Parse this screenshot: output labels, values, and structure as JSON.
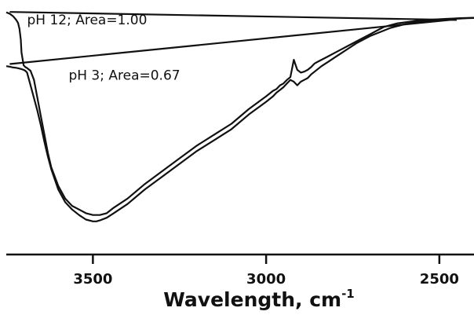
{
  "chart_data": {
    "type": "line",
    "title": "",
    "xlabel": "Wavelength, cm",
    "xlabel_superscript": "-1",
    "ylabel": "",
    "xlim": [
      3750,
      2400
    ],
    "ylim": [
      -1.05,
      0.06
    ],
    "x_reversed": true,
    "grid": false,
    "legend": "none",
    "xticks": [
      3500,
      3000,
      2500
    ],
    "xtick_labels": [
      "3500",
      "3000",
      "2500"
    ],
    "annotations": [
      {
        "text": "pH 12; Area=1.00",
        "x": 3690,
        "y": 0.005
      },
      {
        "text": "pH 3; Area=0.67",
        "x": 3570,
        "y": -0.3
      }
    ],
    "series": [
      {
        "color": "#111111",
        "x": [
          3750,
          3740,
          3730,
          3722,
          3716,
          3712,
          3708,
          3706,
          3700,
          3695,
          3690,
          3680,
          3670,
          3660,
          3650,
          3640,
          3630,
          3620,
          3600,
          3580,
          3560,
          3540,
          3520,
          3500,
          3490,
          3480,
          3460,
          3440,
          3400,
          3350,
          3300,
          3250,
          3200,
          3150,
          3100,
          3050,
          3000,
          2980,
          2970,
          2960,
          2950,
          2940,
          2930,
          2920,
          2910,
          2900,
          2890,
          2880,
          2870,
          2860,
          2850,
          2840,
          2820,
          2800,
          2780,
          2760,
          2740,
          2720,
          2700,
          2680,
          2660,
          2640,
          2620,
          2600,
          2580,
          2560,
          2540,
          2520,
          2500,
          2480,
          2460,
          2440,
          2420,
          2400
        ],
        "y": [
          0.07,
          0.062,
          0.048,
          0.03,
          0.012,
          -0.02,
          -0.08,
          -0.15,
          -0.22,
          -0.23,
          -0.235,
          -0.25,
          -0.3,
          -0.4,
          -0.5,
          -0.6,
          -0.7,
          -0.78,
          -0.88,
          -0.95,
          -0.99,
          -1.01,
          -1.03,
          -1.04,
          -1.04,
          -1.04,
          -1.03,
          -1.0,
          -0.95,
          -0.87,
          -0.8,
          -0.73,
          -0.66,
          -0.6,
          -0.54,
          -0.46,
          -0.39,
          -0.36,
          -0.35,
          -0.33,
          -0.32,
          -0.3,
          -0.285,
          -0.19,
          -0.245,
          -0.26,
          -0.255,
          -0.245,
          -0.23,
          -0.21,
          -0.2,
          -0.19,
          -0.17,
          -0.15,
          -0.13,
          -0.11,
          -0.09,
          -0.07,
          -0.05,
          -0.03,
          -0.01,
          0.0,
          0.01,
          0.015,
          0.02,
          0.025,
          0.028,
          0.03,
          0.032,
          0.034,
          0.036,
          0.038,
          0.039,
          0.04
        ]
      },
      {
        "color": "#111111",
        "x": [
          3750,
          3740,
          3730,
          3722,
          3716,
          3712,
          3708,
          3706,
          3700,
          3695,
          3690,
          3680,
          3670,
          3660,
          3650,
          3640,
          3630,
          3620,
          3600,
          3580,
          3560,
          3540,
          3520,
          3500,
          3490,
          3480,
          3460,
          3440,
          3400,
          3350,
          3300,
          3250,
          3200,
          3150,
          3100,
          3050,
          3000,
          2980,
          2970,
          2960,
          2950,
          2940,
          2930,
          2920,
          2910,
          2900,
          2890,
          2880,
          2870,
          2860,
          2850,
          2840,
          2820,
          2800,
          2780,
          2760,
          2740,
          2720,
          2700,
          2680,
          2660,
          2640,
          2620,
          2600,
          2580,
          2560,
          2540,
          2520,
          2500,
          2480,
          2460,
          2440,
          2420,
          2400
        ],
        "y": [
          -0.225,
          -0.228,
          -0.232,
          -0.234,
          -0.236,
          -0.238,
          -0.24,
          -0.241,
          -0.245,
          -0.25,
          -0.26,
          -0.33,
          -0.4,
          -0.47,
          -0.55,
          -0.64,
          -0.72,
          -0.79,
          -0.9,
          -0.97,
          -1.01,
          -1.04,
          -1.065,
          -1.075,
          -1.075,
          -1.07,
          -1.055,
          -1.03,
          -0.98,
          -0.9,
          -0.83,
          -0.76,
          -0.69,
          -0.63,
          -0.57,
          -0.49,
          -0.42,
          -0.39,
          -0.37,
          -0.355,
          -0.34,
          -0.32,
          -0.3,
          -0.31,
          -0.33,
          -0.31,
          -0.3,
          -0.29,
          -0.27,
          -0.255,
          -0.24,
          -0.225,
          -0.2,
          -0.175,
          -0.15,
          -0.125,
          -0.1,
          -0.08,
          -0.06,
          -0.045,
          -0.03,
          -0.015,
          -0.005,
          0.005,
          0.012,
          0.018,
          0.022,
          0.026,
          0.029,
          0.032,
          0.034,
          0.036,
          0.038,
          0.039
        ]
      },
      {
        "color": "#111111",
        "x": [
          3740,
          2450
        ],
        "y": [
          0.072,
          0.028
        ]
      },
      {
        "color": "#111111",
        "x": [
          3740,
          2450
        ],
        "y": [
          -0.213,
          0.032
        ]
      }
    ]
  }
}
